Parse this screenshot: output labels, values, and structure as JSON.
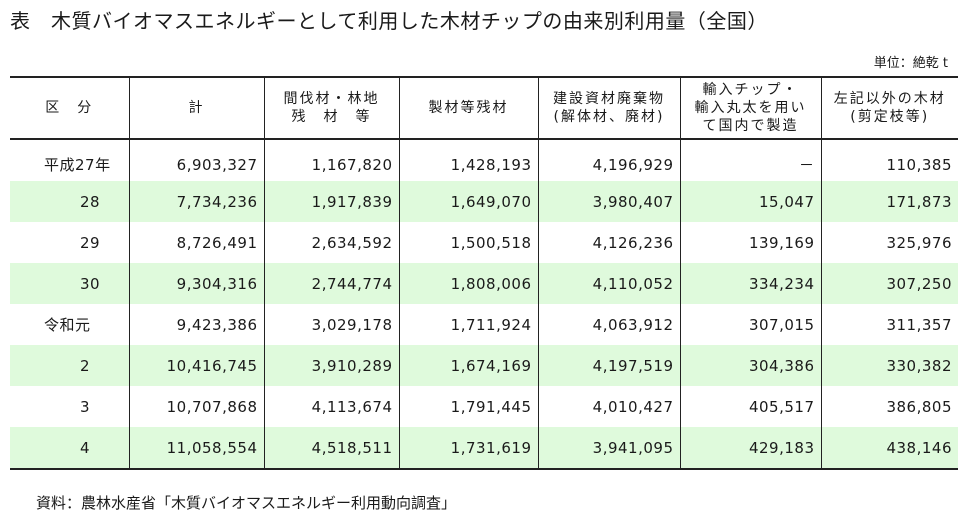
{
  "title": "表　木質バイオマスエネルギーとして利用した木材チップの由来別利用量（全国）",
  "unit": "単位：絶乾 t",
  "headers": [
    "区　分",
    "計",
    "間伐材・林地\n残　材　等",
    "製材等残材",
    "建設資材廃棄物\n(解体材、廃材)",
    "輸入チップ・\n輸入丸太を用い\nて国内で製造",
    "左記以外の木材\n(剪定枝等)"
  ],
  "rows": [
    {
      "label": "平成27年",
      "total": "6,903,327",
      "thinning": "1,167,820",
      "sawmill": "1,428,193",
      "construction": "4,196,929",
      "imported": "－",
      "other": "110,385"
    },
    {
      "label": "28",
      "total": "7,734,236",
      "thinning": "1,917,839",
      "sawmill": "1,649,070",
      "construction": "3,980,407",
      "imported": "15,047",
      "other": "171,873"
    },
    {
      "label": "29",
      "total": "8,726,491",
      "thinning": "2,634,592",
      "sawmill": "1,500,518",
      "construction": "4,126,236",
      "imported": "139,169",
      "other": "325,976"
    },
    {
      "label": "30",
      "total": "9,304,316",
      "thinning": "2,744,774",
      "sawmill": "1,808,006",
      "construction": "4,110,052",
      "imported": "334,234",
      "other": "307,250"
    },
    {
      "label": "令和元",
      "total": "9,423,386",
      "thinning": "3,029,178",
      "sawmill": "1,711,924",
      "construction": "4,063,912",
      "imported": "307,015",
      "other": "311,357"
    },
    {
      "label": "2",
      "total": "10,416,745",
      "thinning": "3,910,289",
      "sawmill": "1,674,169",
      "construction": "4,197,519",
      "imported": "304,386",
      "other": "330,382"
    },
    {
      "label": "3",
      "total": "10,707,868",
      "thinning": "4,113,674",
      "sawmill": "1,791,445",
      "construction": "4,010,427",
      "imported": "405,517",
      "other": "386,805"
    },
    {
      "label": "4",
      "total": "11,058,554",
      "thinning": "4,518,511",
      "sawmill": "1,731,619",
      "construction": "3,941,095",
      "imported": "429,183",
      "other": "438,146"
    }
  ],
  "source": "資料：農林水産省「木質バイオマスエネルギー利用動向調査」",
  "colors": {
    "row_shade": "#dffadc",
    "rule": "#222222"
  }
}
